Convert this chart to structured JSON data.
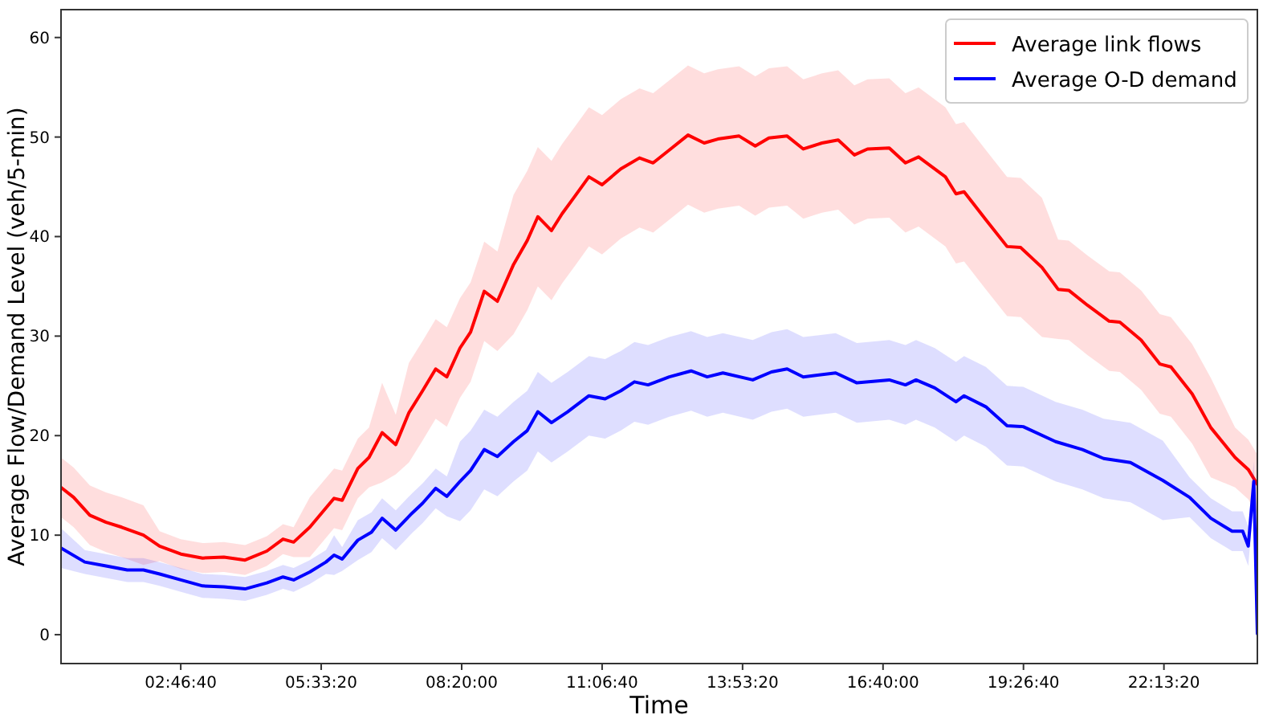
{
  "chart_data": {
    "type": "line",
    "xlabel": "Time",
    "ylabel": "Average Flow/Demand Level (veh/5-min)",
    "xlim": [
      0.41,
      24.07
    ],
    "ylim": [
      -2.9,
      62.8
    ],
    "xticks": [
      {
        "value": 2.7778,
        "label": "02:46:40"
      },
      {
        "value": 5.5556,
        "label": "05:33:20"
      },
      {
        "value": 8.3333,
        "label": "08:20:00"
      },
      {
        "value": 11.1111,
        "label": "11:06:40"
      },
      {
        "value": 13.8889,
        "label": "13:53:20"
      },
      {
        "value": 16.6667,
        "label": "16:40:00"
      },
      {
        "value": 19.4444,
        "label": "19:26:40"
      },
      {
        "value": 22.2222,
        "label": "22:13:20"
      }
    ],
    "yticks": [
      0,
      10,
      20,
      30,
      40,
      50,
      60
    ],
    "grid": false,
    "legend": "top right",
    "marker": "none",
    "line_style": "solid",
    "series": [
      {
        "name": "Average link flows",
        "color": "#ff0000",
        "x": [
          0.41,
          0.66,
          0.98,
          1.3,
          1.61,
          2.04,
          2.36,
          2.78,
          3.21,
          3.63,
          4.05,
          4.48,
          4.8,
          5.01,
          5.33,
          5.81,
          5.97,
          6.28,
          6.5,
          6.76,
          7.03,
          7.29,
          7.56,
          7.82,
          8.04,
          8.3,
          8.51,
          8.78,
          9.04,
          9.36,
          9.63,
          9.84,
          10.11,
          10.32,
          10.58,
          10.85,
          11.11,
          11.48,
          11.85,
          12.12,
          12.44,
          12.81,
          13.13,
          13.4,
          13.82,
          14.14,
          14.41,
          14.77,
          15.09,
          15.46,
          15.78,
          16.1,
          16.36,
          16.79,
          17.11,
          17.37,
          17.9,
          18.11,
          18.27,
          18.7,
          19.12,
          19.39,
          19.81,
          20.13,
          20.34,
          20.71,
          21.14,
          21.35,
          21.77,
          22.14,
          22.36,
          22.78,
          23.15,
          23.63,
          23.89,
          24.07
        ],
        "values": [
          14.8,
          13.8,
          12.0,
          11.3,
          10.8,
          10.0,
          8.9,
          8.1,
          7.7,
          7.8,
          7.5,
          8.4,
          9.6,
          9.3,
          10.8,
          13.7,
          13.5,
          16.7,
          17.8,
          20.3,
          19.1,
          22.3,
          24.5,
          26.7,
          25.9,
          28.8,
          30.4,
          34.5,
          33.5,
          37.2,
          39.6,
          42.0,
          40.6,
          42.3,
          44.1,
          46.0,
          45.2,
          46.8,
          47.9,
          47.4,
          48.7,
          50.2,
          49.4,
          49.8,
          50.1,
          49.1,
          49.9,
          50.1,
          48.8,
          49.4,
          49.7,
          48.2,
          48.8,
          48.9,
          47.4,
          48.0,
          46.0,
          44.3,
          44.5,
          41.7,
          39.0,
          38.9,
          36.9,
          34.7,
          34.6,
          33.1,
          31.5,
          31.4,
          29.6,
          27.2,
          26.9,
          24.2,
          20.8,
          17.8,
          16.6,
          15.1
        ],
        "lower": [
          11.8,
          10.8,
          9.0,
          8.3,
          7.8,
          7.0,
          7.4,
          6.6,
          6.2,
          6.3,
          6.0,
          6.9,
          8.1,
          7.8,
          7.8,
          10.7,
          10.5,
          13.7,
          14.8,
          15.3,
          16.1,
          17.3,
          19.5,
          21.7,
          20.9,
          23.8,
          25.4,
          29.5,
          28.5,
          30.2,
          32.6,
          35.0,
          33.6,
          35.3,
          37.1,
          39.0,
          38.2,
          39.8,
          40.9,
          40.4,
          41.7,
          43.2,
          42.4,
          42.8,
          43.1,
          42.1,
          42.9,
          43.1,
          41.8,
          42.4,
          42.7,
          41.2,
          41.8,
          41.9,
          40.4,
          41.0,
          39.0,
          37.3,
          37.5,
          34.7,
          32.0,
          31.9,
          29.9,
          29.7,
          29.6,
          28.1,
          26.5,
          26.4,
          24.6,
          22.2,
          21.9,
          19.2,
          15.8,
          14.8,
          13.6,
          12.1
        ],
        "upper": [
          17.8,
          16.8,
          15.0,
          14.3,
          13.8,
          13.0,
          10.4,
          9.6,
          9.2,
          9.3,
          9.0,
          9.9,
          11.1,
          10.8,
          13.8,
          16.7,
          16.5,
          19.7,
          20.8,
          25.3,
          22.1,
          27.3,
          29.5,
          31.7,
          30.9,
          33.8,
          35.4,
          39.5,
          38.5,
          44.2,
          46.6,
          49.0,
          47.6,
          49.3,
          51.1,
          53.0,
          52.2,
          53.8,
          54.9,
          54.4,
          55.7,
          57.2,
          56.4,
          56.8,
          57.1,
          56.1,
          56.9,
          57.1,
          55.8,
          56.4,
          56.7,
          55.2,
          55.8,
          55.9,
          54.4,
          55.0,
          53.0,
          51.3,
          51.5,
          48.7,
          46.0,
          45.9,
          43.9,
          39.7,
          39.6,
          38.1,
          36.5,
          36.4,
          34.6,
          32.2,
          31.9,
          29.2,
          25.8,
          20.8,
          19.6,
          18.1
        ]
      },
      {
        "name": "Average O-D demand",
        "color": "#0000ff",
        "x": [
          0.41,
          0.88,
          1.3,
          1.72,
          2.04,
          2.36,
          2.78,
          3.21,
          3.63,
          4.05,
          4.48,
          4.8,
          5.01,
          5.33,
          5.65,
          5.81,
          5.97,
          6.28,
          6.55,
          6.76,
          7.03,
          7.35,
          7.56,
          7.82,
          8.04,
          8.3,
          8.51,
          8.78,
          9.04,
          9.36,
          9.63,
          9.84,
          10.11,
          10.43,
          10.85,
          11.17,
          11.48,
          11.75,
          12.02,
          12.44,
          12.87,
          13.19,
          13.5,
          14.09,
          14.46,
          14.77,
          15.09,
          15.73,
          16.15,
          16.79,
          17.11,
          17.32,
          17.69,
          18.11,
          18.27,
          18.7,
          19.12,
          19.44,
          20.08,
          20.61,
          21.03,
          21.56,
          22.2,
          22.73,
          23.15,
          23.57,
          23.78,
          23.89,
          24.0,
          24.07
        ],
        "values": [
          8.7,
          7.3,
          6.9,
          6.5,
          6.5,
          6.1,
          5.5,
          4.9,
          4.8,
          4.6,
          5.2,
          5.8,
          5.5,
          6.3,
          7.3,
          8.0,
          7.6,
          9.5,
          10.3,
          11.7,
          10.5,
          12.2,
          13.2,
          14.7,
          13.9,
          15.4,
          16.5,
          18.6,
          17.9,
          19.4,
          20.5,
          22.4,
          21.3,
          22.4,
          24.0,
          23.7,
          24.5,
          25.4,
          25.1,
          25.9,
          26.5,
          25.9,
          26.3,
          25.6,
          26.4,
          26.7,
          25.9,
          26.3,
          25.3,
          25.6,
          25.1,
          25.6,
          24.8,
          23.4,
          24.0,
          22.9,
          21.0,
          20.9,
          19.4,
          18.6,
          17.7,
          17.3,
          15.5,
          13.8,
          11.7,
          10.4,
          10.4,
          8.9,
          15.4,
          0.1
        ],
        "lower": [
          6.7,
          6.1,
          5.7,
          5.3,
          5.3,
          4.9,
          4.3,
          3.7,
          3.6,
          3.4,
          4.0,
          4.6,
          4.3,
          5.1,
          6.1,
          6.0,
          6.4,
          7.5,
          8.3,
          9.7,
          8.5,
          10.2,
          11.2,
          12.7,
          11.9,
          11.4,
          12.5,
          14.6,
          13.9,
          15.4,
          16.5,
          18.4,
          17.3,
          18.4,
          20.0,
          19.7,
          20.5,
          21.4,
          21.1,
          21.9,
          22.5,
          21.9,
          22.3,
          21.6,
          22.4,
          22.7,
          21.9,
          22.3,
          21.3,
          21.6,
          21.1,
          21.6,
          20.8,
          19.4,
          20.0,
          18.9,
          17.0,
          16.9,
          15.4,
          14.6,
          13.7,
          13.3,
          11.5,
          11.8,
          9.7,
          8.4,
          8.4,
          6.9,
          13.4,
          0.0
        ],
        "upper": [
          10.7,
          8.5,
          8.1,
          7.7,
          7.7,
          7.3,
          6.7,
          6.1,
          6.0,
          5.8,
          6.4,
          7.0,
          6.7,
          7.5,
          8.5,
          10.0,
          8.8,
          11.5,
          12.3,
          13.7,
          12.5,
          14.2,
          15.2,
          16.7,
          15.9,
          19.4,
          20.5,
          22.6,
          21.9,
          23.4,
          24.5,
          26.4,
          25.3,
          26.4,
          28.0,
          27.7,
          28.5,
          29.4,
          29.1,
          29.9,
          30.5,
          29.9,
          30.3,
          29.6,
          30.4,
          30.7,
          29.9,
          30.3,
          29.3,
          29.6,
          29.1,
          29.6,
          28.8,
          27.4,
          28.0,
          26.9,
          25.0,
          24.9,
          23.4,
          22.6,
          21.7,
          21.3,
          19.5,
          15.8,
          13.7,
          12.4,
          12.4,
          10.9,
          17.4,
          0.2
        ]
      }
    ]
  }
}
